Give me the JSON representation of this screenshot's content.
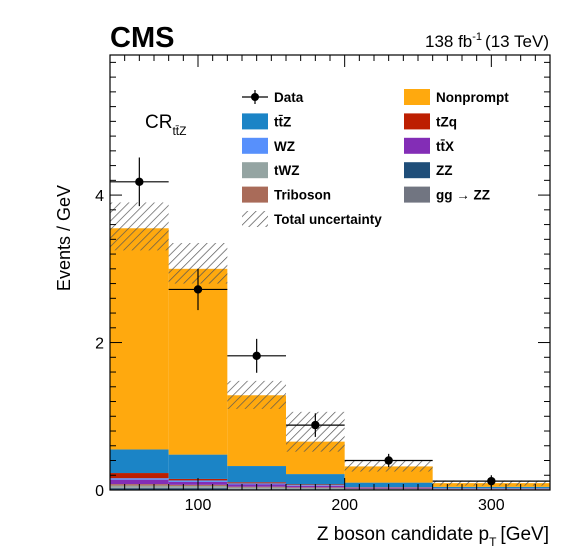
{
  "header": {
    "experiment": "CMS",
    "lumi_value": "138 fb",
    "lumi_exp": "-1",
    "lumi_energy": "(13 TeV)",
    "region_main": "CR",
    "region_sub": "tt̄Z"
  },
  "chart_data": {
    "type": "bar",
    "stacked": true,
    "xlabel": "Z boson candidate p",
    "xlabel_sub": "T",
    "xlabel_unit": "[GeV]",
    "ylabel": "Events / GeV",
    "xlim": [
      40,
      340
    ],
    "ylim": [
      0,
      5.9
    ],
    "x_ticks": [
      100,
      200,
      300
    ],
    "x_tick_labels": [
      "100",
      "200",
      "300"
    ],
    "y_ticks": [
      0,
      2,
      4
    ],
    "y_tick_labels": [
      "0",
      "2",
      "4"
    ],
    "legend_placement": "top-right",
    "bin_edges": [
      40,
      80,
      120,
      160,
      200,
      260,
      340
    ],
    "series": [
      {
        "name": "ZZ",
        "color": "#1f4e79",
        "values": [
          0.02,
          0.02,
          0.01,
          0.01,
          0.005,
          0.003
        ]
      },
      {
        "name": "gg → ZZ",
        "color": "#717581",
        "values": [
          0.01,
          0.01,
          0.005,
          0.003,
          0.002,
          0.001
        ]
      },
      {
        "name": "tWZ",
        "color": "#94a4a2",
        "values": [
          0.03,
          0.025,
          0.02,
          0.015,
          0.008,
          0.005
        ]
      },
      {
        "name": "Triboson",
        "color": "#a96b59",
        "values": [
          0.02,
          0.015,
          0.01,
          0.008,
          0.005,
          0.003
        ]
      },
      {
        "name": "tt̄X",
        "color": "#832db6",
        "values": [
          0.06,
          0.04,
          0.03,
          0.02,
          0.01,
          0.005
        ]
      },
      {
        "name": "WZ",
        "color": "#5790fc",
        "values": [
          0.02,
          0.02,
          0.015,
          0.01,
          0.005,
          0.003
        ]
      },
      {
        "name": "tZq",
        "color": "#bd1f01",
        "values": [
          0.07,
          0.02,
          0.015,
          0.01,
          0.005,
          0.003
        ]
      },
      {
        "name": "tt̄Z",
        "color": "#1b84c6",
        "values": [
          0.32,
          0.33,
          0.22,
          0.14,
          0.06,
          0.02
        ]
      },
      {
        "name": "Nonprompt",
        "color": "#ffa90e",
        "values": [
          3.0,
          2.52,
          0.96,
          0.44,
          0.22,
          0.05
        ]
      }
    ],
    "total_uncertainty": {
      "name": "Total uncertainty",
      "down": [
        3.25,
        2.8,
        1.1,
        0.52,
        0.25,
        0.06
      ],
      "up": [
        3.9,
        3.35,
        1.48,
        1.06,
        0.4,
        0.13
      ]
    },
    "data": {
      "name": "Data",
      "x": [
        60,
        100,
        140,
        180,
        230,
        300
      ],
      "y": [
        4.18,
        2.72,
        1.82,
        0.88,
        0.4,
        0.12
      ],
      "xerr": [
        20,
        20,
        20,
        20,
        30,
        40
      ],
      "yerr_up": [
        0.33,
        0.28,
        0.23,
        0.16,
        0.09,
        0.08
      ],
      "yerr_down": [
        0.33,
        0.28,
        0.23,
        0.16,
        0.09,
        0.08
      ]
    },
    "legend": [
      {
        "label": "Data",
        "kind": "data"
      },
      {
        "label": "Nonprompt",
        "kind": "box",
        "color": "#ffa90e"
      },
      {
        "label": "tt̄Z",
        "kind": "box",
        "color": "#1b84c6"
      },
      {
        "label": "tZq",
        "kind": "box",
        "color": "#bd1f01"
      },
      {
        "label": "WZ",
        "kind": "box",
        "color": "#5790fc"
      },
      {
        "label": "tt̄X",
        "kind": "box",
        "color": "#832db6"
      },
      {
        "label": "tWZ",
        "kind": "box",
        "color": "#94a4a2"
      },
      {
        "label": "ZZ",
        "kind": "box",
        "color": "#1f4e79"
      },
      {
        "label": "Triboson",
        "kind": "box",
        "color": "#a96b59"
      },
      {
        "label": "gg → ZZ",
        "kind": "box",
        "color": "#717581"
      },
      {
        "label": "Total uncertainty",
        "kind": "hatch"
      }
    ]
  }
}
